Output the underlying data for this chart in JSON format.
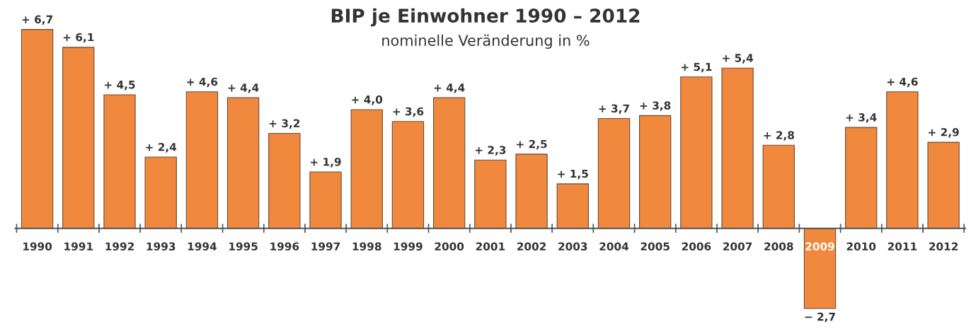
{
  "chart_data": {
    "type": "bar",
    "title": "BIP je Einwohner 1990 – 2012",
    "subtitle": "nominelle Veränderung in %",
    "categories": [
      "1990",
      "1991",
      "1992",
      "1993",
      "1994",
      "1995",
      "1996",
      "1997",
      "1998",
      "1999",
      "2000",
      "2001",
      "2002",
      "2003",
      "2004",
      "2005",
      "2006",
      "2007",
      "2008",
      "2009",
      "2010",
      "2011",
      "2012"
    ],
    "values": [
      6.7,
      6.1,
      4.5,
      2.4,
      4.6,
      4.4,
      3.2,
      1.9,
      4.0,
      3.6,
      4.4,
      2.3,
      2.5,
      1.5,
      3.7,
      3.8,
      5.1,
      5.4,
      2.8,
      -2.7,
      3.4,
      4.6,
      2.9
    ],
    "value_labels": [
      "+ 6,7",
      "+ 6,1",
      "+ 4,5",
      "+ 2,4",
      "+ 4,6",
      "+ 4,4",
      "+ 3,2",
      "+ 1,9",
      "+ 4,0",
      "+ 3,6",
      "+ 4,4",
      "+ 2,3",
      "+ 2,5",
      "+ 1,5",
      "+ 3,7",
      "+ 3,8",
      "+ 5,1",
      "+ 5,4",
      "+ 2,8",
      "− 2,7",
      "+ 3,4",
      "+ 4,6",
      "+ 2,9"
    ],
    "color": "#f0883e",
    "grid": false,
    "legend": false
  }
}
